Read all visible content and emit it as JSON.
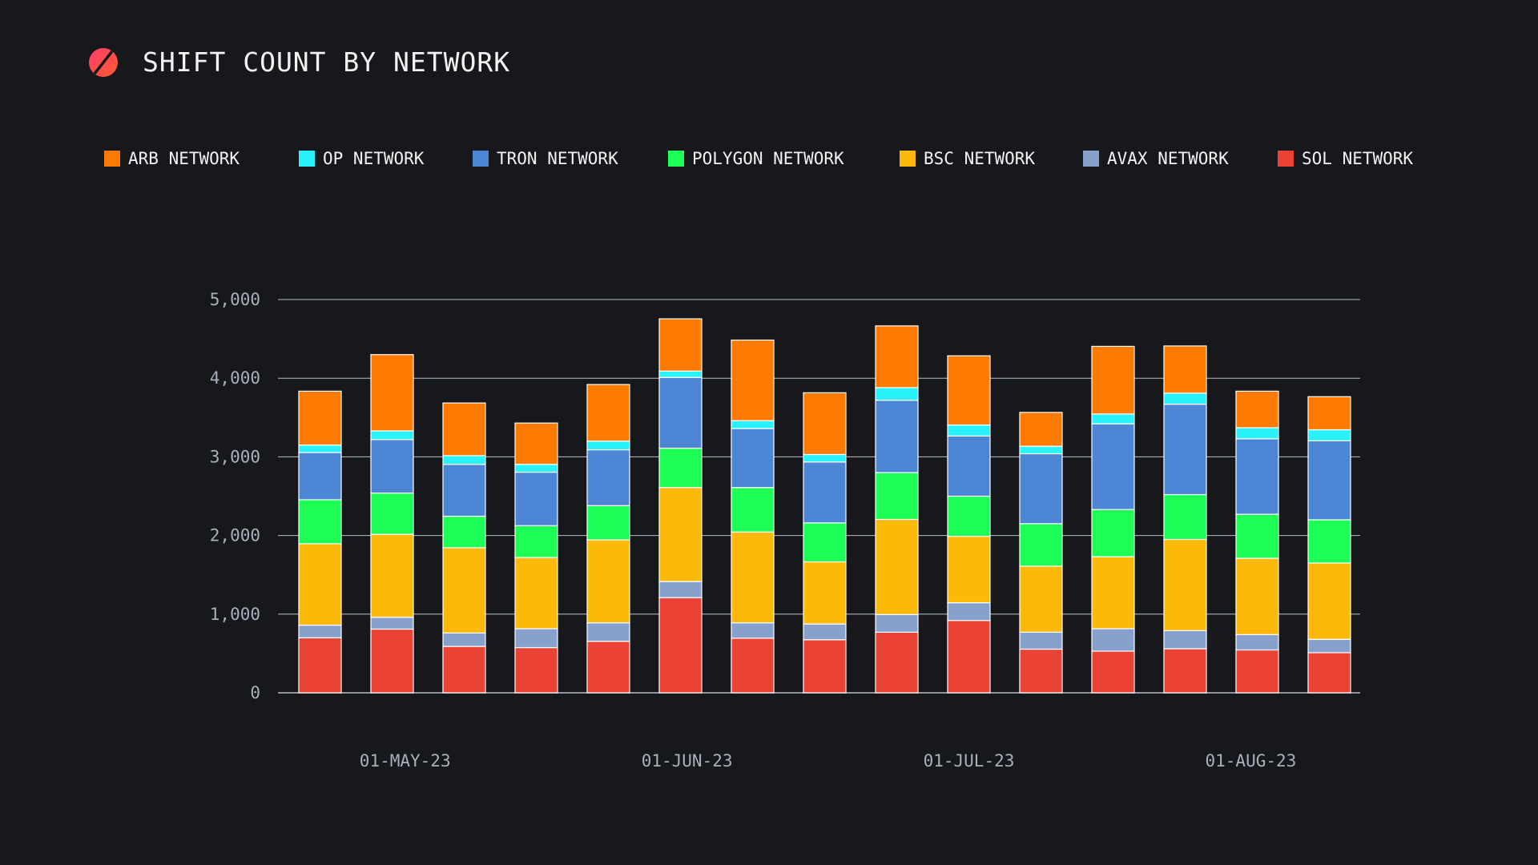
{
  "header": {
    "title": "SHIFT COUNT BY NETWORK",
    "logo_icon": "slashed-circle-logo-icon",
    "logo_colors": [
      "#ff3d6e",
      "#ff5a2c"
    ]
  },
  "legend": [
    {
      "label": "ARB NETWORK",
      "color": "#ff7b00"
    },
    {
      "label": "OP NETWORK",
      "color": "#29f2fb"
    },
    {
      "label": "TRON NETWORK",
      "color": "#4e86d6"
    },
    {
      "label": "POLYGON NETWORK",
      "color": "#1eff56"
    },
    {
      "label": "BSC NETWORK",
      "color": "#fdb909"
    },
    {
      "label": "AVAX NETWORK",
      "color": "#87a0cc"
    },
    {
      "label": "SOL NETWORK",
      "color": "#ea4335"
    }
  ],
  "chart_data": {
    "type": "bar",
    "stacked": true,
    "title": "SHIFT COUNT BY NETWORK",
    "xlabel": "",
    "ylabel": "",
    "ylim": [
      0,
      5000
    ],
    "yticks": [
      0,
      1000,
      2000,
      3000,
      4000,
      5000
    ],
    "ytick_labels": [
      "0",
      "1,000",
      "2,000",
      "3,000",
      "4,000",
      "5,000"
    ],
    "grid": true,
    "legend_position": "top",
    "x_granularity": "weekly",
    "bar_count": 15,
    "xticks": [
      {
        "label": "01-MAY-23",
        "bar_index": 1.18
      },
      {
        "label": "01-JUN-23",
        "bar_index": 5.09
      },
      {
        "label": "01-JUL-23",
        "bar_index": 9.0
      },
      {
        "label": "01-AUG-23",
        "bar_index": 12.91
      }
    ],
    "stack_order_bottom_to_top": [
      "SOL NETWORK",
      "AVAX NETWORK",
      "BSC NETWORK",
      "POLYGON NETWORK",
      "TRON NETWORK",
      "OP NETWORK",
      "ARB NETWORK"
    ],
    "series": [
      {
        "name": "SOL NETWORK",
        "color": "#ea4335",
        "values": [
          700,
          810,
          590,
          575,
          655,
          1210,
          695,
          675,
          770,
          920,
          555,
          530,
          560,
          545,
          510
        ]
      },
      {
        "name": "AVAX NETWORK",
        "color": "#87a0cc",
        "values": [
          160,
          150,
          170,
          240,
          235,
          205,
          195,
          200,
          225,
          225,
          215,
          285,
          230,
          195,
          170
        ]
      },
      {
        "name": "BSC NETWORK",
        "color": "#fdb909",
        "values": [
          1035,
          1055,
          1085,
          905,
          1055,
          1195,
          1155,
          790,
          1210,
          845,
          840,
          915,
          1160,
          970,
          970
        ]
      },
      {
        "name": "POLYGON NETWORK",
        "color": "#1eff56",
        "values": [
          560,
          525,
          400,
          405,
          435,
          500,
          565,
          495,
          595,
          510,
          540,
          600,
          570,
          560,
          550
        ]
      },
      {
        "name": "TRON NETWORK",
        "color": "#4e86d6",
        "values": [
          600,
          680,
          660,
          680,
          710,
          900,
          750,
          775,
          920,
          765,
          890,
          1090,
          1150,
          960,
          1005
        ]
      },
      {
        "name": "OP NETWORK",
        "color": "#29f2fb",
        "values": [
          95,
          110,
          110,
          100,
          110,
          80,
          100,
          95,
          160,
          140,
          95,
          125,
          140,
          140,
          140
        ]
      },
      {
        "name": "ARB NETWORK",
        "color": "#ff7b00",
        "values": [
          685,
          970,
          670,
          525,
          720,
          665,
          1025,
          785,
          785,
          880,
          430,
          860,
          600,
          465,
          420
        ]
      }
    ],
    "totals": [
      3835,
      4300,
      3685,
      3430,
      3920,
      4755,
      4485,
      3815,
      4665,
      4285,
      3565,
      4405,
      4410,
      3835,
      3765
    ]
  }
}
